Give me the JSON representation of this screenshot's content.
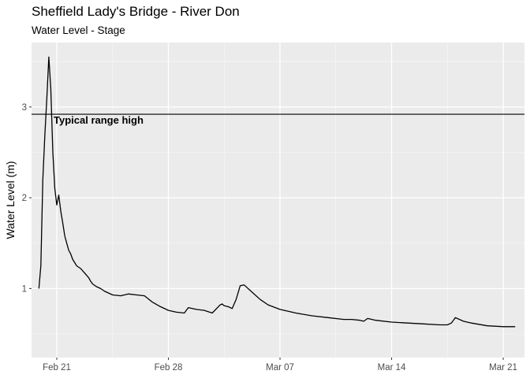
{
  "chart_data": {
    "type": "line",
    "title": "Sheffield Lady's Bridge - River Don",
    "subtitle": "Water Level - Stage",
    "xlabel": "",
    "ylabel": "Water Level (m)",
    "x_ticks": [
      {
        "date": "2022-02-21",
        "label": "Feb 21"
      },
      {
        "date": "2022-02-28",
        "label": "Feb 28"
      },
      {
        "date": "2022-03-07",
        "label": "Mar 07"
      },
      {
        "date": "2022-03-14",
        "label": "Mar 14"
      },
      {
        "date": "2022-03-21",
        "label": "Mar 21"
      }
    ],
    "y_ticks": [
      1,
      2,
      3
    ],
    "xlim": [
      "2022-02-19T10:00",
      "2022-03-22T08:00"
    ],
    "ylim": [
      0.24,
      3.71
    ],
    "grid": true,
    "reference_line": {
      "y": 2.92,
      "label": "Typical range high"
    },
    "series": [
      {
        "x": [
          "2022-02-19T21:00",
          "2022-02-20T00:00",
          "2022-02-20T03:00",
          "2022-02-20T06:00",
          "2022-02-20T09:00",
          "2022-02-20T12:00",
          "2022-02-20T15:00",
          "2022-02-20T18:00",
          "2022-02-20T21:00",
          "2022-02-21T00:00",
          "2022-02-21T03:00",
          "2022-02-21T06:00",
          "2022-02-21T09:00",
          "2022-02-21T12:00",
          "2022-02-21T15:00",
          "2022-02-21T18:00",
          "2022-02-21T21:00",
          "2022-02-22T00:00",
          "2022-02-22T06:00",
          "2022-02-22T12:00",
          "2022-02-22T18:00",
          "2022-02-23T00:00",
          "2022-02-23T03:00",
          "2022-02-23T06:00",
          "2022-02-23T12:00",
          "2022-02-23T18:00",
          "2022-02-24T00:00",
          "2022-02-24T12:00",
          "2022-02-25T00:00",
          "2022-02-25T12:00",
          "2022-02-26T00:00",
          "2022-02-26T12:00",
          "2022-02-27T00:00",
          "2022-02-27T12:00",
          "2022-02-28T00:00",
          "2022-02-28T12:00",
          "2022-03-01T00:00",
          "2022-03-01T06:00",
          "2022-03-01T18:00",
          "2022-03-02T06:00",
          "2022-03-02T18:00",
          "2022-03-03T06:00",
          "2022-03-03T09:00",
          "2022-03-03T12:00",
          "2022-03-03T18:00",
          "2022-03-04T00:00",
          "2022-03-04T06:00",
          "2022-03-04T12:00",
          "2022-03-04T18:00",
          "2022-03-05T06:00",
          "2022-03-05T18:00",
          "2022-03-06T06:00",
          "2022-03-07T00:00",
          "2022-03-08T00:00",
          "2022-03-09T00:00",
          "2022-03-10T00:00",
          "2022-03-11T00:00",
          "2022-03-11T12:00",
          "2022-03-12T00:00",
          "2022-03-12T06:00",
          "2022-03-12T12:00",
          "2022-03-13T00:00",
          "2022-03-14T00:00",
          "2022-03-15T00:00",
          "2022-03-16T00:00",
          "2022-03-17T00:00",
          "2022-03-17T12:00",
          "2022-03-17T18:00",
          "2022-03-18T00:00",
          "2022-03-18T12:00",
          "2022-03-19T00:00",
          "2022-03-20T00:00",
          "2022-03-21T00:00",
          "2022-03-21T18:00"
        ],
        "y": [
          1.0,
          1.25,
          2.2,
          2.68,
          3.1,
          3.55,
          3.2,
          2.5,
          2.1,
          1.92,
          2.03,
          1.85,
          1.72,
          1.58,
          1.5,
          1.42,
          1.38,
          1.32,
          1.25,
          1.22,
          1.17,
          1.12,
          1.08,
          1.05,
          1.02,
          1.0,
          0.97,
          0.93,
          0.92,
          0.94,
          0.93,
          0.92,
          0.85,
          0.8,
          0.76,
          0.74,
          0.73,
          0.79,
          0.77,
          0.76,
          0.73,
          0.82,
          0.83,
          0.81,
          0.8,
          0.78,
          0.88,
          1.03,
          1.04,
          0.96,
          0.88,
          0.82,
          0.77,
          0.73,
          0.7,
          0.68,
          0.66,
          0.66,
          0.65,
          0.64,
          0.67,
          0.65,
          0.63,
          0.62,
          0.61,
          0.6,
          0.6,
          0.62,
          0.68,
          0.64,
          0.62,
          0.59,
          0.58,
          0.58
        ]
      }
    ]
  }
}
